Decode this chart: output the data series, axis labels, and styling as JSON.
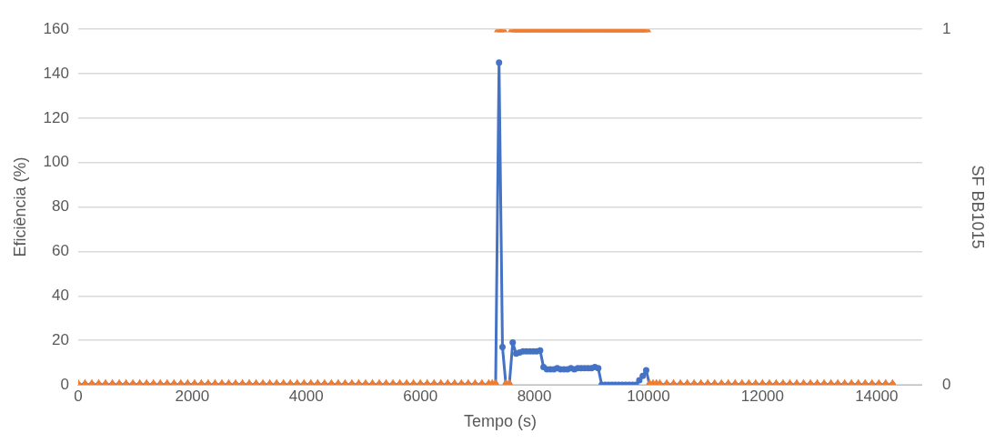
{
  "chart_data": {
    "type": "line",
    "xlabel": "Tempo (s)",
    "ylabel": "Eficiência (%)",
    "y2label": "SF BB1015",
    "x": [
      0,
      120,
      240,
      360,
      480,
      600,
      720,
      840,
      960,
      1080,
      1200,
      1320,
      1440,
      1560,
      1680,
      1800,
      1920,
      2040,
      2160,
      2280,
      2400,
      2520,
      2640,
      2760,
      2880,
      3000,
      3120,
      3240,
      3360,
      3480,
      3600,
      3720,
      3840,
      3960,
      4080,
      4200,
      4320,
      4440,
      4560,
      4680,
      4800,
      4920,
      5040,
      5160,
      5280,
      5400,
      5520,
      5640,
      5760,
      5880,
      6000,
      6120,
      6240,
      6360,
      6480,
      6600,
      6720,
      6840,
      6960,
      7080,
      7200,
      7260,
      7320,
      7380,
      7440,
      7500,
      7560,
      7620,
      7680,
      7740,
      7800,
      7860,
      7920,
      7980,
      8040,
      8100,
      8160,
      8220,
      8280,
      8340,
      8400,
      8460,
      8520,
      8580,
      8640,
      8700,
      8760,
      8820,
      8880,
      8940,
      9000,
      9060,
      9120,
      9180,
      9240,
      9300,
      9360,
      9420,
      9480,
      9540,
      9600,
      9660,
      9720,
      9780,
      9840,
      9900,
      9960,
      10020,
      10080,
      10140,
      10200,
      10320,
      10440,
      10560,
      10680,
      10800,
      10920,
      11040,
      11160,
      11280,
      11400,
      11520,
      11640,
      11760,
      11880,
      12000,
      12120,
      12240,
      12360,
      12480,
      12600,
      12720,
      12840,
      12960,
      13080,
      13200,
      13320,
      13440,
      13560,
      13680,
      13800,
      13920,
      14040,
      14160,
      14280
    ],
    "series": [
      {
        "type": "line",
        "color": "#4472c4",
        "marker": "circle",
        "line_style": "solid",
        "values": [
          0,
          0,
          0,
          0,
          0,
          0,
          0,
          0,
          0,
          0,
          0,
          0,
          0,
          0,
          0,
          0,
          0,
          0,
          0,
          0,
          0,
          0,
          0,
          0,
          0,
          0,
          0,
          0,
          0,
          0,
          0,
          0,
          0,
          0,
          0,
          0,
          0,
          0,
          0,
          0,
          0,
          0,
          0,
          0,
          0,
          0,
          0,
          0,
          0,
          0,
          0,
          0,
          0,
          0,
          0,
          0,
          0,
          0,
          0,
          0,
          0,
          0,
          0,
          145,
          17,
          0,
          0,
          19,
          14,
          14.5,
          15,
          15,
          15,
          15,
          15,
          15.5,
          8,
          7,
          7,
          7,
          7.5,
          7,
          7,
          7,
          7.5,
          7,
          7.5,
          7.5,
          7.5,
          7.5,
          7.5,
          8,
          7.5,
          0,
          0,
          0,
          0,
          0,
          0,
          0,
          0,
          0,
          0,
          0,
          2,
          4,
          6.5,
          0,
          0,
          0,
          0,
          0,
          0,
          0,
          0,
          0,
          0,
          0,
          0,
          0,
          0,
          0,
          0,
          0,
          0,
          0,
          0,
          0,
          0,
          0,
          0,
          0,
          0,
          0,
          0,
          0,
          0,
          0,
          0,
          0,
          0,
          0,
          0,
          0,
          0
        ]
      },
      {
        "type": "scatter",
        "color": "#ed7d31",
        "marker": "triangle",
        "axis": "y2",
        "values": [
          0,
          0,
          0,
          0,
          0,
          0,
          0,
          0,
          0,
          0,
          0,
          0,
          0,
          0,
          0,
          0,
          0,
          0,
          0,
          0,
          0,
          0,
          0,
          0,
          0,
          0,
          0,
          0,
          0,
          0,
          0,
          0,
          0,
          0,
          0,
          0,
          0,
          0,
          0,
          0,
          0,
          0,
          0,
          0,
          0,
          0,
          0,
          0,
          0,
          0,
          0,
          0,
          0,
          0,
          0,
          0,
          0,
          0,
          0,
          0,
          0,
          0,
          0,
          1,
          1,
          0,
          0,
          1,
          1,
          1,
          1,
          1,
          1,
          1,
          1,
          1,
          1,
          1,
          1,
          1,
          1,
          1,
          1,
          1,
          1,
          1,
          1,
          1,
          1,
          1,
          1,
          1,
          1,
          1,
          1,
          1,
          1,
          1,
          1,
          1,
          1,
          1,
          1,
          1,
          1,
          1,
          1,
          0,
          0,
          0,
          0,
          0,
          0,
          0,
          0,
          0,
          0,
          0,
          0,
          0,
          0,
          0,
          0,
          0,
          0,
          0,
          0,
          0,
          0,
          0,
          0,
          0,
          0,
          0,
          0,
          0,
          0,
          0,
          0,
          0,
          0,
          0,
          0,
          0,
          0
        ]
      }
    ],
    "xlim": [
      0,
      14800
    ],
    "xticks": [
      0,
      2000,
      4000,
      6000,
      8000,
      10000,
      12000,
      14000
    ],
    "ylim": [
      0,
      160
    ],
    "yticks": [
      0,
      20,
      40,
      60,
      80,
      100,
      120,
      140,
      160
    ],
    "y2lim": [
      0,
      1
    ],
    "y2ticks": [
      0,
      1
    ],
    "grid": "y"
  }
}
